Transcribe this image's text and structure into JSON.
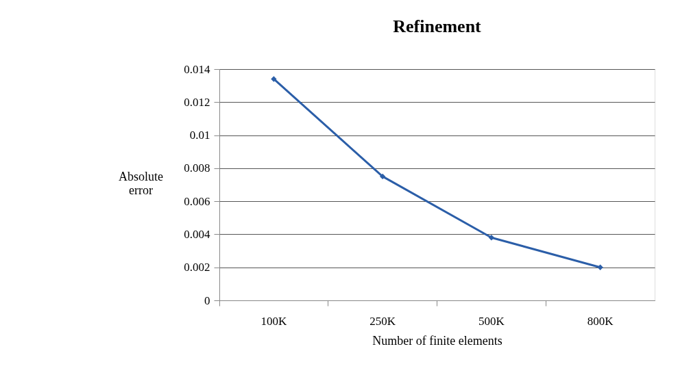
{
  "chart_data": {
    "type": "line",
    "title": "Refinement",
    "xlabel": "Number of finite elements",
    "ylabel": "Absolute error",
    "categories": [
      "100K",
      "250K",
      "500K",
      "800K"
    ],
    "series": [
      {
        "color": "#2b5ea8",
        "values": [
          0.0134,
          0.0075,
          0.0038,
          0.002
        ]
      }
    ],
    "ylim": [
      0,
      0.014
    ],
    "yticks": [
      0,
      0.002,
      0.004,
      0.006,
      0.008,
      0.01,
      0.012,
      0.014
    ],
    "grid": "y",
    "marker": "diamond",
    "line_style": "solid",
    "legend": false
  }
}
